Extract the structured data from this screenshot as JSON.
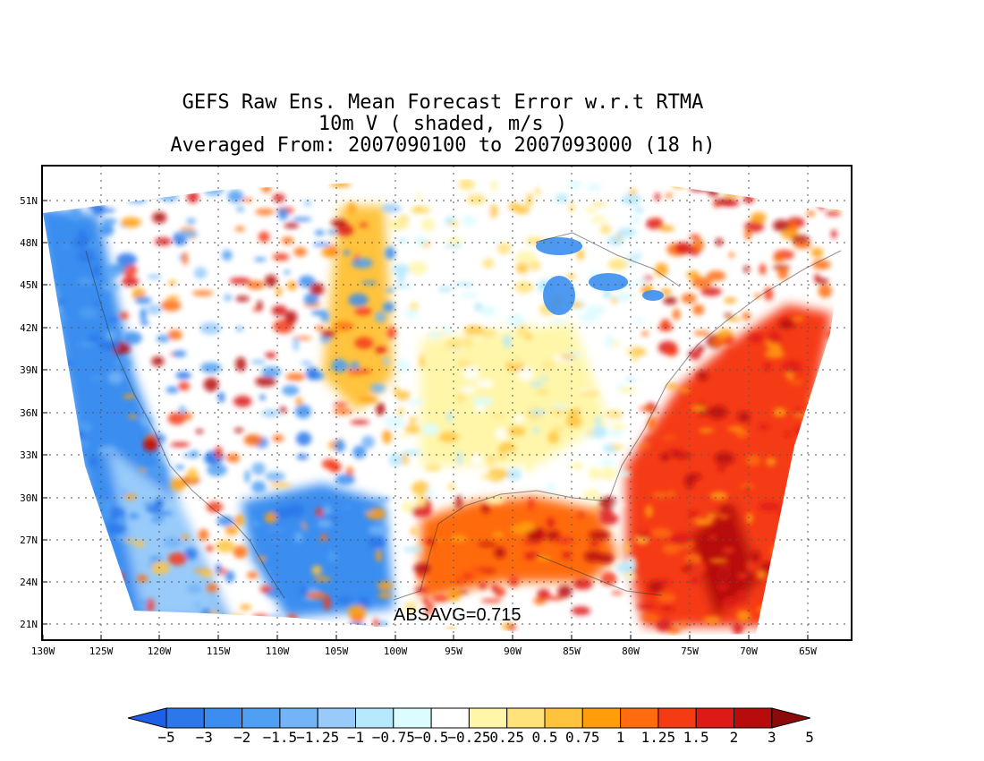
{
  "title": {
    "line1": "GEFS Raw Ens. Mean Forecast Error w.r.t RTMA",
    "line2": "10m V ( shaded, m/s )",
    "line3": "Averaged From: 2007090100 to 2007093000 (18 h)"
  },
  "map": {
    "lat_labels": [
      "51N",
      "48N",
      "45N",
      "42N",
      "39N",
      "36N",
      "33N",
      "30N",
      "27N",
      "24N",
      "21N"
    ],
    "lon_labels": [
      "130W",
      "125W",
      "120W",
      "115W",
      "110W",
      "105W",
      "100W",
      "95W",
      "90W",
      "85W",
      "80W",
      "75W",
      "70W",
      "65W"
    ],
    "annotation": "ABSAVG=0.715",
    "grid": "dotted"
  },
  "colorbar": {
    "labels": [
      "−5",
      "−3",
      "−2",
      "−1.5",
      "−1.25",
      "−1",
      "−0.75",
      "−0.5",
      "−0.25",
      "0.25",
      "0.5",
      "0.75",
      "1",
      "1.25",
      "1.5",
      "2",
      "3",
      "5"
    ],
    "colors": [
      "#1f5ee6",
      "#2c77ea",
      "#3b8ef0",
      "#4f9ff2",
      "#73b4f6",
      "#98cbfa",
      "#b5e9fb",
      "#dcfcff",
      "#ffffff",
      "#fff6aa",
      "#ffe27a",
      "#ffc33e",
      "#ff9e0a",
      "#ff6b0e",
      "#f53b14",
      "#dd1a16",
      "#b80c0c",
      "#8c0a0a"
    ]
  }
}
